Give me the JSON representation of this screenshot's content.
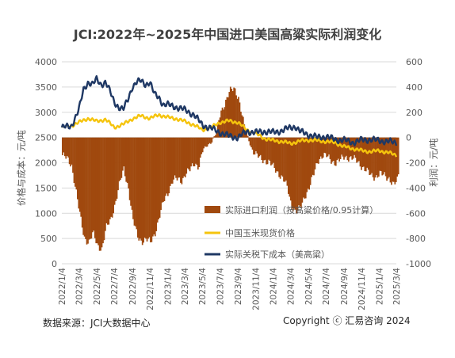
{
  "chart_data": {
    "type": "bar+line",
    "title": "JCI:2022年~2025年中国进口美国高粱实际利润变化",
    "ylabel_left": "价格与成本：元/吨",
    "ylabel_right": "利润：元/吨",
    "ylim_left": [
      0,
      4000
    ],
    "ylim_right": [
      -1000,
      600
    ],
    "left_ticks": [
      "0",
      "500",
      "1000",
      "1500",
      "2000",
      "2500",
      "3000",
      "3500",
      "4000"
    ],
    "right_ticks": [
      "-1000",
      "-800",
      "-600",
      "-400",
      "-200",
      "0",
      "200",
      "400",
      "600"
    ],
    "x_start": "2022-01-04",
    "x_end": "2025-03-04",
    "x_ticks": [
      "2022/1/4",
      "2022/3/4",
      "2022/5/4",
      "2022/7/4",
      "2022/9/4",
      "2022/11/4",
      "2023/1/4",
      "2023/3/4",
      "2023/5/4",
      "2023/7/4",
      "2023/9/4",
      "2023/11/4",
      "2024/1/4",
      "2024/3/4",
      "2024/5/4",
      "2024/7/4",
      "2024/9/4",
      "2024/11/4",
      "2025/1/4",
      "2025/3/4"
    ],
    "legend_position": "center-right",
    "series": [
      {
        "name": "实际进口利润（按高粱价格/0.95计算）",
        "type": "bar",
        "axis": "right",
        "color": "#A0490E",
        "points": [
          [
            "2022-01-04",
            -140
          ],
          [
            "2022-01-20",
            -170
          ],
          [
            "2022-02-05",
            -220
          ],
          [
            "2022-02-20",
            -420
          ],
          [
            "2022-03-04",
            -600
          ],
          [
            "2022-03-20",
            -790
          ],
          [
            "2022-04-05",
            -830
          ],
          [
            "2022-04-20",
            -760
          ],
          [
            "2022-05-04",
            -850
          ],
          [
            "2022-05-20",
            -880
          ],
          [
            "2022-06-04",
            -720
          ],
          [
            "2022-06-20",
            -650
          ],
          [
            "2022-07-04",
            -530
          ],
          [
            "2022-07-20",
            -370
          ],
          [
            "2022-08-04",
            -250
          ],
          [
            "2022-08-20",
            -400
          ],
          [
            "2022-09-04",
            -650
          ],
          [
            "2022-09-20",
            -780
          ],
          [
            "2022-10-05",
            -820
          ],
          [
            "2022-10-20",
            -810
          ],
          [
            "2022-11-04",
            -830
          ],
          [
            "2022-11-20",
            -750
          ],
          [
            "2022-12-05",
            -630
          ],
          [
            "2022-12-20",
            -500
          ],
          [
            "2023-01-04",
            -430
          ],
          [
            "2023-01-20",
            -340
          ],
          [
            "2023-02-05",
            -330
          ],
          [
            "2023-02-20",
            -340
          ],
          [
            "2023-03-04",
            -290
          ],
          [
            "2023-03-20",
            -260
          ],
          [
            "2023-04-05",
            -200
          ],
          [
            "2023-04-20",
            -230
          ],
          [
            "2023-05-04",
            -100
          ],
          [
            "2023-05-20",
            -60
          ],
          [
            "2023-06-04",
            -30
          ],
          [
            "2023-06-20",
            40
          ],
          [
            "2023-07-04",
            200
          ],
          [
            "2023-07-20",
            280
          ],
          [
            "2023-08-04",
            360
          ],
          [
            "2023-08-20",
            390
          ],
          [
            "2023-09-04",
            320
          ],
          [
            "2023-09-20",
            130
          ],
          [
            "2023-10-05",
            10
          ],
          [
            "2023-10-20",
            -90
          ],
          [
            "2023-11-04",
            -140
          ],
          [
            "2023-11-20",
            -170
          ],
          [
            "2023-12-05",
            -180
          ],
          [
            "2023-12-20",
            -200
          ],
          [
            "2024-01-04",
            -240
          ],
          [
            "2024-01-20",
            -280
          ],
          [
            "2024-02-05",
            -330
          ],
          [
            "2024-02-20",
            -400
          ],
          [
            "2024-03-04",
            -530
          ],
          [
            "2024-03-20",
            -590
          ],
          [
            "2024-04-05",
            -560
          ],
          [
            "2024-04-20",
            -460
          ],
          [
            "2024-05-04",
            -400
          ],
          [
            "2024-05-20",
            -300
          ],
          [
            "2024-06-04",
            -180
          ],
          [
            "2024-06-20",
            -140
          ],
          [
            "2024-07-04",
            -150
          ],
          [
            "2024-07-20",
            -180
          ],
          [
            "2024-08-04",
            -200
          ],
          [
            "2024-08-20",
            -180
          ],
          [
            "2024-09-04",
            -150
          ],
          [
            "2024-09-20",
            -160
          ],
          [
            "2024-10-05",
            -170
          ],
          [
            "2024-10-20",
            -190
          ],
          [
            "2024-11-04",
            -230
          ],
          [
            "2024-11-20",
            -270
          ],
          [
            "2024-12-05",
            -300
          ],
          [
            "2024-12-20",
            -310
          ],
          [
            "2025-01-04",
            -290
          ],
          [
            "2025-01-20",
            -300
          ],
          [
            "2025-02-05",
            -320
          ],
          [
            "2025-02-20",
            -380
          ],
          [
            "2025-03-04",
            -350
          ],
          [
            "2025-03-10",
            -290
          ]
        ]
      },
      {
        "name": "中国玉米现货价格",
        "type": "line",
        "axis": "left",
        "color": "#F5C40D",
        "points": [
          [
            "2022-01-04",
            2700
          ],
          [
            "2022-02-05",
            2730
          ],
          [
            "2022-03-04",
            2800
          ],
          [
            "2022-04-05",
            2880
          ],
          [
            "2022-05-04",
            2820
          ],
          [
            "2022-06-04",
            2860
          ],
          [
            "2022-07-04",
            2700
          ],
          [
            "2022-08-04",
            2760
          ],
          [
            "2022-09-04",
            2870
          ],
          [
            "2022-10-05",
            2930
          ],
          [
            "2022-11-04",
            2880
          ],
          [
            "2022-12-05",
            2950
          ],
          [
            "2023-01-04",
            2900
          ],
          [
            "2023-02-05",
            2870
          ],
          [
            "2023-03-04",
            2820
          ],
          [
            "2023-04-05",
            2750
          ],
          [
            "2023-05-04",
            2650
          ],
          [
            "2023-06-04",
            2700
          ],
          [
            "2023-07-04",
            2800
          ],
          [
            "2023-08-04",
            2830
          ],
          [
            "2023-09-04",
            2800
          ],
          [
            "2023-10-05",
            2650
          ],
          [
            "2023-11-04",
            2580
          ],
          [
            "2023-12-05",
            2480
          ],
          [
            "2024-01-04",
            2440
          ],
          [
            "2024-02-05",
            2420
          ],
          [
            "2024-03-04",
            2380
          ],
          [
            "2024-04-05",
            2430
          ],
          [
            "2024-05-04",
            2450
          ],
          [
            "2024-06-04",
            2440
          ],
          [
            "2024-07-04",
            2420
          ],
          [
            "2024-08-04",
            2400
          ],
          [
            "2024-09-04",
            2320
          ],
          [
            "2024-10-05",
            2280
          ],
          [
            "2024-11-04",
            2240
          ],
          [
            "2024-12-05",
            2220
          ],
          [
            "2025-01-04",
            2240
          ],
          [
            "2025-02-05",
            2200
          ],
          [
            "2025-03-04",
            2150
          ]
        ]
      },
      {
        "name": "实际关税下成本（美高粱）",
        "type": "line",
        "axis": "left",
        "color": "#1F3864",
        "points": [
          [
            "2022-01-04",
            2700
          ],
          [
            "2022-02-05",
            2720
          ],
          [
            "2022-03-04",
            3050
          ],
          [
            "2022-03-20",
            3450
          ],
          [
            "2022-04-05",
            3600
          ],
          [
            "2022-04-20",
            3550
          ],
          [
            "2022-05-04",
            3650
          ],
          [
            "2022-05-20",
            3550
          ],
          [
            "2022-06-04",
            3600
          ],
          [
            "2022-06-20",
            3400
          ],
          [
            "2022-07-04",
            3200
          ],
          [
            "2022-07-20",
            3100
          ],
          [
            "2022-08-04",
            3050
          ],
          [
            "2022-08-20",
            3250
          ],
          [
            "2022-09-04",
            3500
          ],
          [
            "2022-09-20",
            3600
          ],
          [
            "2022-10-05",
            3620
          ],
          [
            "2022-10-20",
            3550
          ],
          [
            "2022-11-04",
            3600
          ],
          [
            "2022-11-20",
            3350
          ],
          [
            "2022-12-05",
            3300
          ],
          [
            "2022-12-20",
            3150
          ],
          [
            "2023-01-04",
            3150
          ],
          [
            "2023-02-05",
            3100
          ],
          [
            "2023-03-04",
            3050
          ],
          [
            "2023-04-05",
            2950
          ],
          [
            "2023-05-04",
            2750
          ],
          [
            "2023-06-04",
            2680
          ],
          [
            "2023-07-04",
            2600
          ],
          [
            "2023-08-04",
            2530
          ],
          [
            "2023-09-04",
            2500
          ],
          [
            "2023-10-05",
            2620
          ],
          [
            "2023-11-04",
            2600
          ],
          [
            "2023-12-05",
            2620
          ],
          [
            "2024-01-04",
            2600
          ],
          [
            "2024-02-05",
            2640
          ],
          [
            "2024-03-04",
            2700
          ],
          [
            "2024-03-20",
            2720
          ],
          [
            "2024-04-05",
            2620
          ],
          [
            "2024-05-04",
            2560
          ],
          [
            "2024-06-04",
            2500
          ],
          [
            "2024-07-04",
            2520
          ],
          [
            "2024-08-04",
            2460
          ],
          [
            "2024-09-04",
            2450
          ],
          [
            "2024-10-05",
            2400
          ],
          [
            "2024-11-04",
            2450
          ],
          [
            "2024-12-05",
            2460
          ],
          [
            "2025-01-04",
            2440
          ],
          [
            "2025-02-05",
            2420
          ],
          [
            "2025-03-04",
            2400
          ]
        ]
      }
    ]
  },
  "footer": {
    "source": "数据来源：JCI大数据中心",
    "copyright": "Copyright ⓒ 汇易咨询 2024"
  },
  "colors": {
    "background": "#ffffff",
    "grid": "#d9d9d9",
    "text": "#595959",
    "title": "#404040"
  }
}
